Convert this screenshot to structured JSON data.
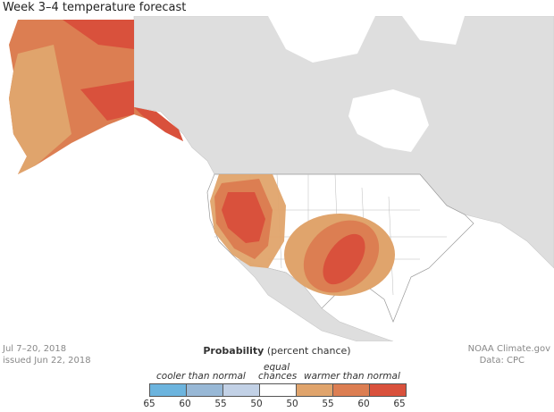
{
  "title": "Week 3–4 temperature forecast",
  "period": "Jul 7–20, 2018",
  "issued": "issued Jun 22, 2018",
  "credit": "NOAA Climate.gov",
  "source": "Data: CPC",
  "legend": {
    "heading_bold": "Probability",
    "heading_rest": "(percent chance)",
    "cooler": "cooler than normal",
    "equal_1": "equal",
    "equal_2": "chances",
    "warmer": "warmer than normal",
    "ticks": [
      "65",
      "60",
      "55",
      "50",
      "50",
      "55",
      "60",
      "65"
    ],
    "colors": [
      "#6cb4de",
      "#98b8d6",
      "#c2d1e6",
      "#ffffff",
      "#e0a46c",
      "#dc7e52",
      "#d9513c"
    ]
  }
}
